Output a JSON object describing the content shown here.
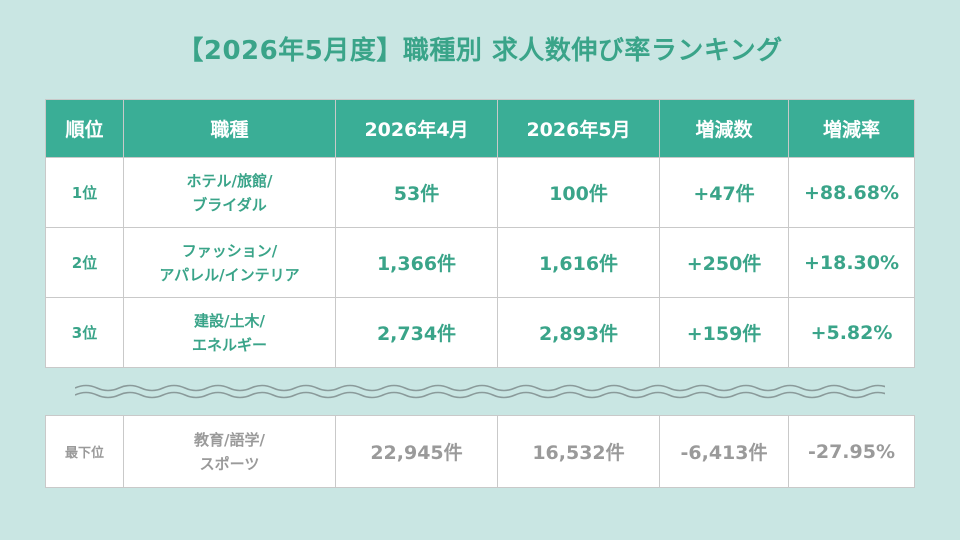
{
  "title": "【2026年5月度】職種別 求人数伸び率ランキング",
  "colors": {
    "background": "#c9e6e3",
    "header_bg": "#3aae96",
    "accent_text": "#3aa489",
    "muted_text": "#9a9a9a",
    "wave": "#8a9a9a"
  },
  "table": {
    "headers": [
      "順位",
      "職種",
      "2026年4月",
      "2026年5月",
      "増減数",
      "増減率"
    ],
    "rows": [
      {
        "rank": "1位",
        "job_line1": "ホテル/旅館/",
        "job_line2": "ブライダル",
        "apr": "53件",
        "may": "100件",
        "diff": "+47件",
        "rate": "+88.68%"
      },
      {
        "rank": "2位",
        "job_line1": "ファッション/",
        "job_line2": "アパレル/インテリア",
        "apr": "1,366件",
        "may": "1,616件",
        "diff": "+250件",
        "rate": "+18.30%"
      },
      {
        "rank": "3位",
        "job_line1": "建設/土木/",
        "job_line2": "エネルギー",
        "apr": "2,734件",
        "may": "2,893件",
        "diff": "+159件",
        "rate": "+5.82%"
      }
    ],
    "last": {
      "rank": "最下位",
      "job_line1": "教育/語学/",
      "job_line2": "スポーツ",
      "apr": "22,945件",
      "may": "16,532件",
      "diff": "-6,413件",
      "rate": "-27.95%"
    }
  }
}
